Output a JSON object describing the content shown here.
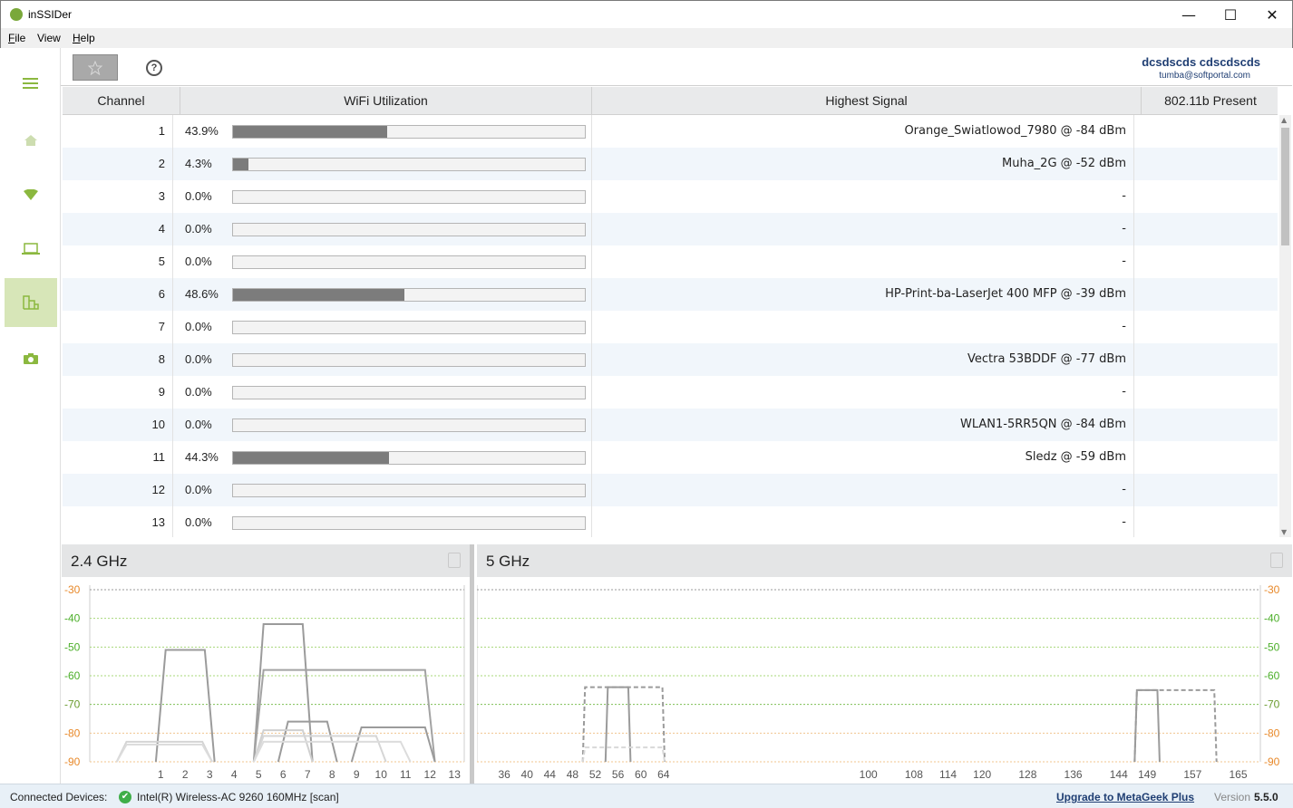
{
  "window": {
    "title": "inSSIDer",
    "minimize": "—",
    "maximize": "☐",
    "close": "✕"
  },
  "menu": [
    {
      "label": "File",
      "u": "F",
      "rest": "ile"
    },
    {
      "label": "View",
      "u": "",
      "rest": "View"
    },
    {
      "label": "Help",
      "u": "H",
      "rest": "elp"
    }
  ],
  "sidebar": {
    "items": [
      {
        "name": "menu-icon",
        "active": false
      },
      {
        "name": "home-icon",
        "active": false
      },
      {
        "name": "wifi-icon",
        "active": false
      },
      {
        "name": "laptop-icon",
        "active": false
      },
      {
        "name": "channels-icon",
        "active": true
      },
      {
        "name": "camera-icon",
        "active": false
      }
    ],
    "accent": "#8bb83f",
    "muted": "#cdddb0"
  },
  "toolbar": {
    "favorite_icon": "star-icon",
    "help_icon": "help-icon",
    "help_glyph": "?"
  },
  "user": {
    "name": "dcsdscds cdscdscds",
    "email": "tumba@softportal.com"
  },
  "table": {
    "headers": [
      "Channel",
      "WiFi Utilization",
      "Highest Signal",
      "802.11b Present"
    ],
    "rows": [
      {
        "channel": "1",
        "util": "43.9%",
        "util_value": 43.9,
        "signal": "Orange_Swiatlowod_7980 @ -84 dBm",
        "b": ""
      },
      {
        "channel": "2",
        "util": "4.3%",
        "util_value": 4.3,
        "signal": "Muha_2G @ -52 dBm",
        "b": ""
      },
      {
        "channel": "3",
        "util": "0.0%",
        "util_value": 0,
        "signal": "-",
        "b": ""
      },
      {
        "channel": "4",
        "util": "0.0%",
        "util_value": 0,
        "signal": "-",
        "b": ""
      },
      {
        "channel": "5",
        "util": "0.0%",
        "util_value": 0,
        "signal": "-",
        "b": ""
      },
      {
        "channel": "6",
        "util": "48.6%",
        "util_value": 48.6,
        "signal": "HP-Print-ba-LaserJet 400 MFP @ -39 dBm",
        "b": ""
      },
      {
        "channel": "7",
        "util": "0.0%",
        "util_value": 0,
        "signal": "-",
        "b": ""
      },
      {
        "channel": "8",
        "util": "0.0%",
        "util_value": 0,
        "signal": "Vectra 53BDDF @ -77 dBm",
        "b": ""
      },
      {
        "channel": "9",
        "util": "0.0%",
        "util_value": 0,
        "signal": "-",
        "b": ""
      },
      {
        "channel": "10",
        "util": "0.0%",
        "util_value": 0,
        "signal": "WLAN1-5RR5QN @ -84 dBm",
        "b": ""
      },
      {
        "channel": "11",
        "util": "44.3%",
        "util_value": 44.3,
        "signal": "Sledz @ -59 dBm",
        "b": ""
      },
      {
        "channel": "12",
        "util": "0.0%",
        "util_value": 0,
        "signal": "-",
        "b": ""
      },
      {
        "channel": "13",
        "util": "0.0%",
        "util_value": 0,
        "signal": "-",
        "b": ""
      }
    ]
  },
  "panels": {
    "g24": {
      "title": "2.4 GHz"
    },
    "g5": {
      "title": "5 GHz"
    }
  },
  "chart_data": [
    {
      "type": "line",
      "title": "2.4 GHz",
      "x_ticks": [
        "1",
        "2",
        "3",
        "4",
        "5",
        "6",
        "7",
        "8",
        "9",
        "10",
        "11",
        "12",
        "13"
      ],
      "x_tick_values": [
        1,
        2,
        3,
        4,
        5,
        6,
        7,
        8,
        9,
        10,
        11,
        12,
        13
      ],
      "xlim": [
        -1.9,
        13.4
      ],
      "y_ticks": [
        "-30",
        "-40",
        "-50",
        "-60",
        "-70",
        "-80",
        "-90"
      ],
      "ylim": [
        -90,
        -30
      ],
      "y_axis_side": "left",
      "grid": true,
      "series": [
        {
          "from": 1,
          "to": 3,
          "level": -51,
          "color": "#9b9b9b",
          "width": 2,
          "dashed": false
        },
        {
          "from": 5,
          "to": 7,
          "level": -42,
          "color": "#9b9b9b",
          "width": 2,
          "dashed": false
        },
        {
          "from": 5,
          "to": 12,
          "level": -58,
          "color": "#a3a3a3",
          "width": 2,
          "dashed": false
        },
        {
          "from": 6,
          "to": 8,
          "level": -76,
          "color": "#9b9b9b",
          "width": 2,
          "dashed": false
        },
        {
          "from": 9,
          "to": 12,
          "level": -78,
          "color": "#9b9b9b",
          "width": 2,
          "dashed": false
        },
        {
          "from": -0.6,
          "to": 2.9,
          "level": -83,
          "color": "#d4d4d4",
          "width": 2,
          "dashed": false
        },
        {
          "from": -0.6,
          "to": 2.9,
          "level": -84,
          "color": "#dcdcdc",
          "width": 2,
          "dashed": false
        },
        {
          "from": 5,
          "to": 7,
          "level": -79,
          "color": "#d0d0d0",
          "width": 2,
          "dashed": false
        },
        {
          "from": 5,
          "to": 10,
          "level": -81,
          "color": "#d6d6d6",
          "width": 2,
          "dashed": false
        },
        {
          "from": 5,
          "to": 11,
          "level": -83,
          "color": "#dcdcdc",
          "width": 2,
          "dashed": false
        }
      ]
    },
    {
      "type": "line",
      "title": "5 GHz",
      "x_ticks": [
        "36",
        "40",
        "44",
        "48",
        "52",
        "56",
        "60",
        "64",
        "100",
        "108",
        "114",
        "120",
        "128",
        "136",
        "144",
        "149",
        "157",
        "165"
      ],
      "x_tick_values": [
        36,
        40,
        44,
        48,
        52,
        56,
        60,
        64,
        100,
        108,
        114,
        120,
        128,
        136,
        144,
        149,
        157,
        165
      ],
      "xlim": [
        31.2,
        168.9
      ],
      "y_ticks": [
        "-30",
        "-40",
        "-50",
        "-60",
        "-70",
        "-80",
        "-90"
      ],
      "ylim": [
        -90,
        -30
      ],
      "y_axis_side": "right",
      "grid": true,
      "series": [
        {
          "from": 54,
          "to": 58,
          "level": -64,
          "color": "#9b9b9b",
          "width": 2,
          "dashed": false
        },
        {
          "from": 50,
          "to": 64,
          "level": -64,
          "color": "#9b9b9b",
          "width": 2,
          "dashed": true
        },
        {
          "from": 50,
          "to": 64,
          "level": -85,
          "color": "#d8d8d8",
          "width": 2,
          "dashed": true
        },
        {
          "from": 147,
          "to": 151,
          "level": -65,
          "color": "#9b9b9b",
          "width": 2,
          "dashed": false
        },
        {
          "from": 147,
          "to": 161,
          "level": -65,
          "color": "#9b9b9b",
          "width": 2,
          "dashed": true
        }
      ]
    }
  ],
  "status": {
    "label": "Connected Devices:",
    "check": "✔",
    "device": "Intel(R) Wireless-AC 9260 160MHz [scan]",
    "upgrade": "Upgrade to MetaGeek Plus",
    "version_label": "Version",
    "version": "5.5.0"
  }
}
